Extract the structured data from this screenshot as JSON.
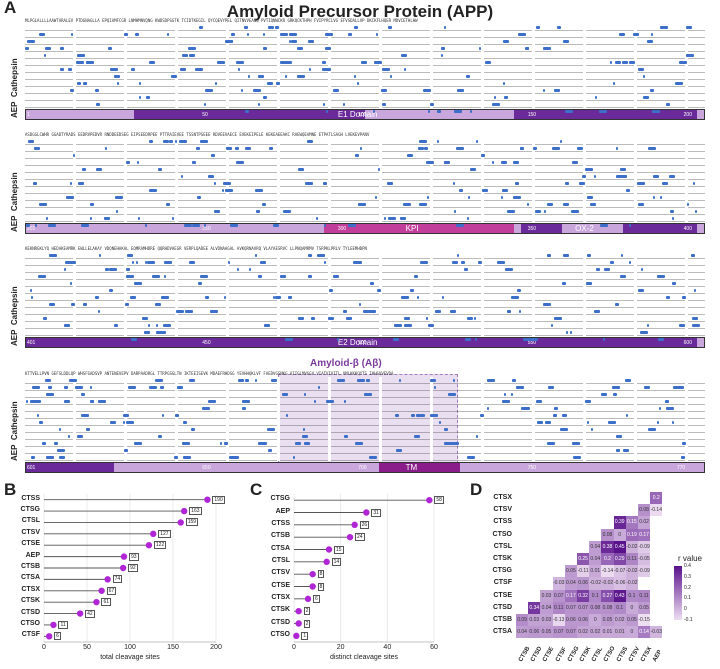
{
  "panels": {
    "A": "A",
    "B": "B",
    "C": "C",
    "D": "D"
  },
  "title": "Amyloid Precursor Protein (APP)",
  "side_labels": {
    "cathepsin": "Cathepsin",
    "aep": "AEP"
  },
  "blocks": [
    {
      "ticks": [
        "1",
        "50",
        "100",
        "150",
        "200"
      ],
      "domains": [
        {
          "label": "E1 Domain"
        }
      ]
    },
    {
      "ticks": [
        "201",
        "250",
        "300",
        "350",
        "400"
      ],
      "domains": [
        {
          "label": "KPI"
        },
        {
          "label": "OX-2"
        }
      ]
    },
    {
      "ticks": [
        "401",
        "450",
        "500",
        "550",
        "600"
      ],
      "domains": [
        {
          "label": "E2 Domain"
        }
      ]
    },
    {
      "ticks": [
        "601",
        "650",
        "700",
        "750",
        "770"
      ],
      "domains": [
        {
          "label": "TM"
        }
      ],
      "abeta_label": "Amyloid-β (Aβ)"
    }
  ],
  "colors": {
    "dark_purple": "#6a2a99",
    "light_purple": "#c9a6dc",
    "kpi": "#c23e9b",
    "tm": "#8a1d8a",
    "dot_blue": "#3b6fc9",
    "lollipop": "#b026d6"
  },
  "chart_data": [
    {
      "type": "lollipop",
      "panel": "B",
      "categories": [
        "CTSS",
        "CTSG",
        "CTSL",
        "CTSV",
        "CTSE",
        "AEP",
        "CTSB",
        "CTSA",
        "CTSX",
        "CTSK",
        "CTSD",
        "CTSO",
        "CTSF"
      ],
      "values": [
        190,
        163,
        159,
        127,
        122,
        93,
        92,
        74,
        67,
        61,
        42,
        11,
        6
      ],
      "xlabel": "total cleavage sites",
      "xticks": [
        0,
        50,
        100,
        150,
        200
      ],
      "xlim": [
        0,
        200
      ]
    },
    {
      "type": "lollipop",
      "panel": "C",
      "categories": [
        "CTSG",
        "AEP",
        "CTSS",
        "CTSB",
        "CTSA",
        "CTSL",
        "CTSV",
        "CTSE",
        "CTSX",
        "CTSK",
        "CTSD",
        "CTSO"
      ],
      "values": [
        58,
        31,
        26,
        24,
        15,
        14,
        8,
        8,
        6,
        2,
        2,
        1
      ],
      "xlabel": "distinct cleavage sites",
      "xticks": [
        0,
        20,
        40,
        60
      ],
      "xlim": [
        0,
        60
      ]
    },
    {
      "type": "heatmap",
      "panel": "D",
      "rows": [
        "CTSX",
        "CTSV",
        "CTSS",
        "CTSO",
        "CTSL",
        "CTSK",
        "CTSG",
        "CTSF",
        "CTSE",
        "CTSD",
        "CTSB",
        "CTSA"
      ],
      "cols": [
        "CTSB",
        "CTSD",
        "CTSE",
        "CTSF",
        "CTSG",
        "CTSK",
        "CTSL",
        "CTSO",
        "CTSS",
        "CTSV",
        "CTSX",
        "AEP"
      ],
      "legend_title": "r value",
      "legend_ticks": [
        "0.4",
        "0.3",
        "0.2",
        "0.1",
        "0",
        "-0.1"
      ],
      "cells": [
        [
          "",
          "",
          "",
          "",
          "",
          "",
          "",
          "",
          "",
          "",
          "",
          "0.2"
        ],
        [
          "",
          "",
          "",
          "",
          "",
          "",
          "",
          "",
          "",
          "",
          "0.08",
          "-0.14"
        ],
        [
          "",
          "",
          "",
          "",
          "",
          "",
          "",
          "",
          "0.39",
          "0.15",
          "0.02",
          ""
        ],
        [
          "",
          "",
          "",
          "",
          "",
          "",
          "",
          "0.08",
          "0",
          "0.19",
          "0.17",
          ""
        ],
        [
          "",
          "",
          "",
          "",
          "",
          "",
          "0.04",
          "0.38",
          "0.45",
          "-0.02",
          "-0.09",
          ""
        ],
        [
          "",
          "",
          "",
          "",
          "",
          "0.25",
          "0.04",
          "0.2",
          "0.29",
          "0.11",
          "-0.05",
          ""
        ],
        [
          "",
          "",
          "",
          "",
          "0.05",
          "-0.11",
          "0.01",
          "-0.14",
          "-0.07",
          "-0.02",
          "-0.09",
          ""
        ],
        [
          "",
          "",
          "",
          "-0.03",
          "0.04",
          "0.06",
          "-0.02",
          "-0.02",
          "-0.06",
          "-0.02",
          "",
          ""
        ],
        [
          "",
          "",
          "0.03",
          "0.07",
          "0.17",
          "0.32",
          "0.1",
          "0.27",
          "0.43",
          "0.1",
          "0.11",
          ""
        ],
        [
          "",
          "0.34",
          "0.04",
          "0.11",
          "0.07",
          "0.07",
          "0.08",
          "0.08",
          "0.1",
          "0",
          "0.05",
          ""
        ],
        [
          "0.09",
          "0.03",
          "0.03",
          "-0.13",
          "0.06",
          "0.06",
          "0",
          "0.05",
          "0.02",
          "0.05",
          "-0.15",
          ""
        ],
        [
          "0.04",
          "0.06",
          "0.05",
          "0.07",
          "0.07",
          "0.02",
          "0.02",
          "0.01",
          "0.01",
          "0",
          "0.14",
          "-0.03"
        ]
      ]
    }
  ]
}
